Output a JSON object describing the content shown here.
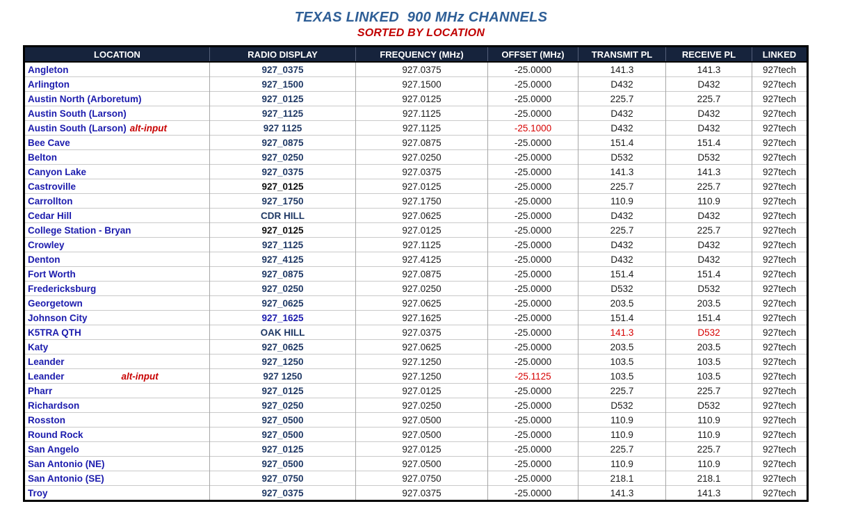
{
  "title": "TEXAS LINKED  900 MHz CHANNELS",
  "subtitle": "SORTED BY LOCATION",
  "colors": {
    "title_blue": "#2E5E96",
    "subtitle_red": "#C00000",
    "header_background": "#16233C",
    "header_text": "#FFFFFF",
    "location_blue": "#1B1BAD",
    "radio_display_navy": "#1F3864",
    "alert_red": "#D60000"
  },
  "table": {
    "headers": [
      "LOCATION",
      "RADIO DISPLAY",
      "FREQUENCY (MHz)",
      "OFFSET (MHz)",
      "TRANSMIT PL",
      "RECEIVE PL",
      "LINKED"
    ],
    "rows": [
      {
        "location": "Angleton",
        "alt": "",
        "alt_gap": false,
        "display": "927_0375",
        "display_color": "navy",
        "frequency": "927.0375",
        "offset": "-25.0000",
        "offset_red": false,
        "transmit_pl": "141.3",
        "receive_pl": "141.3",
        "pl_red": false,
        "linked": "927tech"
      },
      {
        "location": "Arlington",
        "alt": "",
        "alt_gap": false,
        "display": "927_1500",
        "display_color": "navy",
        "frequency": "927.1500",
        "offset": "-25.0000",
        "offset_red": false,
        "transmit_pl": "D432",
        "receive_pl": "D432",
        "pl_red": false,
        "linked": "927tech"
      },
      {
        "location": "Austin North (Arboretum)",
        "alt": "",
        "alt_gap": false,
        "display": "927_0125",
        "display_color": "navy",
        "frequency": "927.0125",
        "offset": "-25.0000",
        "offset_red": false,
        "transmit_pl": "225.7",
        "receive_pl": "225.7",
        "pl_red": false,
        "linked": "927tech"
      },
      {
        "location": "Austin South (Larson)",
        "alt": "",
        "alt_gap": false,
        "display": "927_1125",
        "display_color": "navy",
        "frequency": "927.1125",
        "offset": "-25.0000",
        "offset_red": false,
        "transmit_pl": "D432",
        "receive_pl": "D432",
        "pl_red": false,
        "linked": "927tech"
      },
      {
        "location": "Austin South (Larson)",
        "alt": "alt-input",
        "alt_gap": false,
        "display": "927 1125",
        "display_color": "navy",
        "frequency": "927.1125",
        "offset": "-25.1000",
        "offset_red": true,
        "transmit_pl": "D432",
        "receive_pl": "D432",
        "pl_red": false,
        "linked": "927tech"
      },
      {
        "location": "Bee Cave",
        "alt": "",
        "alt_gap": false,
        "display": "927_0875",
        "display_color": "navy",
        "frequency": "927.0875",
        "offset": "-25.0000",
        "offset_red": false,
        "transmit_pl": "151.4",
        "receive_pl": "151.4",
        "pl_red": false,
        "linked": "927tech"
      },
      {
        "location": "Belton",
        "alt": "",
        "alt_gap": false,
        "display": "927_0250",
        "display_color": "navy",
        "frequency": "927.0250",
        "offset": "-25.0000",
        "offset_red": false,
        "transmit_pl": "D532",
        "receive_pl": "D532",
        "pl_red": false,
        "linked": "927tech"
      },
      {
        "location": "Canyon Lake",
        "alt": "",
        "alt_gap": false,
        "display": "927_0375",
        "display_color": "navy",
        "frequency": "927.0375",
        "offset": "-25.0000",
        "offset_red": false,
        "transmit_pl": "141.3",
        "receive_pl": "141.3",
        "pl_red": false,
        "linked": "927tech"
      },
      {
        "location": "Castroville",
        "alt": "",
        "alt_gap": false,
        "display": "927_0125",
        "display_color": "black",
        "frequency": "927.0125",
        "offset": "-25.0000",
        "offset_red": false,
        "transmit_pl": "225.7",
        "receive_pl": "225.7",
        "pl_red": false,
        "linked": "927tech"
      },
      {
        "location": "Carrollton",
        "alt": "",
        "alt_gap": false,
        "display": "927_1750",
        "display_color": "navy",
        "frequency": "927.1750",
        "offset": "-25.0000",
        "offset_red": false,
        "transmit_pl": "110.9",
        "receive_pl": "110.9",
        "pl_red": false,
        "linked": "927tech"
      },
      {
        "location": "Cedar Hill",
        "alt": "",
        "alt_gap": false,
        "display": "CDR HILL",
        "display_color": "navy",
        "frequency": "927.0625",
        "offset": "-25.0000",
        "offset_red": false,
        "transmit_pl": "D432",
        "receive_pl": "D432",
        "pl_red": false,
        "linked": "927tech"
      },
      {
        "location": "College Station - Bryan",
        "alt": "",
        "alt_gap": false,
        "display": "927_0125",
        "display_color": "black",
        "frequency": "927.0125",
        "offset": "-25.0000",
        "offset_red": false,
        "transmit_pl": "225.7",
        "receive_pl": "225.7",
        "pl_red": false,
        "linked": "927tech"
      },
      {
        "location": "Crowley",
        "alt": "",
        "alt_gap": false,
        "display": "927_1125",
        "display_color": "navy",
        "frequency": "927.1125",
        "offset": "-25.0000",
        "offset_red": false,
        "transmit_pl": "D432",
        "receive_pl": "D432",
        "pl_red": false,
        "linked": "927tech"
      },
      {
        "location": "Denton",
        "alt": "",
        "alt_gap": false,
        "display": "927_4125",
        "display_color": "navy",
        "frequency": "927.4125",
        "offset": "-25.0000",
        "offset_red": false,
        "transmit_pl": "D432",
        "receive_pl": "D432",
        "pl_red": false,
        "linked": "927tech"
      },
      {
        "location": "Fort Worth",
        "alt": "",
        "alt_gap": false,
        "display": "927_0875",
        "display_color": "navy",
        "frequency": "927.0875",
        "offset": "-25.0000",
        "offset_red": false,
        "transmit_pl": "151.4",
        "receive_pl": "151.4",
        "pl_red": false,
        "linked": "927tech"
      },
      {
        "location": "Fredericksburg",
        "alt": "",
        "alt_gap": false,
        "display": "927_0250",
        "display_color": "navy",
        "frequency": "927.0250",
        "offset": "-25.0000",
        "offset_red": false,
        "transmit_pl": "D532",
        "receive_pl": "D532",
        "pl_red": false,
        "linked": "927tech"
      },
      {
        "location": "Georgetown",
        "alt": "",
        "alt_gap": false,
        "display": "927_0625",
        "display_color": "navy",
        "frequency": "927.0625",
        "offset": "-25.0000",
        "offset_red": false,
        "transmit_pl": "203.5",
        "receive_pl": "203.5",
        "pl_red": false,
        "linked": "927tech"
      },
      {
        "location": "Johnson City",
        "alt": "",
        "alt_gap": false,
        "display": "927_1625",
        "display_color": "blue",
        "frequency": "927.1625",
        "offset": "-25.0000",
        "offset_red": false,
        "transmit_pl": "151.4",
        "receive_pl": "151.4",
        "pl_red": false,
        "linked": "927tech"
      },
      {
        "location": "K5TRA QTH",
        "alt": "",
        "alt_gap": false,
        "display": "OAK HILL",
        "display_color": "navy",
        "frequency": "927.0375",
        "offset": "-25.0000",
        "offset_red": false,
        "transmit_pl": "141.3",
        "receive_pl": "D532",
        "pl_red": true,
        "linked": "927tech"
      },
      {
        "location": "Katy",
        "alt": "",
        "alt_gap": false,
        "display": "927_0625",
        "display_color": "navy",
        "frequency": "927.0625",
        "offset": "-25.0000",
        "offset_red": false,
        "transmit_pl": "203.5",
        "receive_pl": "203.5",
        "pl_red": false,
        "linked": "927tech"
      },
      {
        "location": "Leander",
        "alt": "",
        "alt_gap": false,
        "display": "927_1250",
        "display_color": "navy",
        "frequency": "927.1250",
        "offset": "-25.0000",
        "offset_red": false,
        "transmit_pl": "103.5",
        "receive_pl": "103.5",
        "pl_red": false,
        "linked": "927tech"
      },
      {
        "location": "Leander",
        "alt": "alt-input",
        "alt_gap": true,
        "display": "927 1250",
        "display_color": "navy",
        "frequency": "927.1250",
        "offset": "-25.1125",
        "offset_red": true,
        "transmit_pl": "103.5",
        "receive_pl": "103.5",
        "pl_red": false,
        "linked": "927tech"
      },
      {
        "location": "Pharr",
        "alt": "",
        "alt_gap": false,
        "display": "927_0125",
        "display_color": "navy",
        "frequency": "927.0125",
        "offset": "-25.0000",
        "offset_red": false,
        "transmit_pl": "225.7",
        "receive_pl": "225.7",
        "pl_red": false,
        "linked": "927tech"
      },
      {
        "location": "Richardson",
        "alt": "",
        "alt_gap": false,
        "display": "927_0250",
        "display_color": "navy",
        "frequency": "927.0250",
        "offset": "-25.0000",
        "offset_red": false,
        "transmit_pl": "D532",
        "receive_pl": "D532",
        "pl_red": false,
        "linked": "927tech"
      },
      {
        "location": "Rosston",
        "alt": "",
        "alt_gap": false,
        "display": "927_0500",
        "display_color": "navy",
        "frequency": "927.0500",
        "offset": "-25.0000",
        "offset_red": false,
        "transmit_pl": "110.9",
        "receive_pl": "110.9",
        "pl_red": false,
        "linked": "927tech"
      },
      {
        "location": "Round Rock",
        "alt": "",
        "alt_gap": false,
        "display": "927_0500",
        "display_color": "navy",
        "frequency": "927.0500",
        "offset": "-25.0000",
        "offset_red": false,
        "transmit_pl": "110.9",
        "receive_pl": "110.9",
        "pl_red": false,
        "linked": "927tech"
      },
      {
        "location": "San Angelo",
        "alt": "",
        "alt_gap": false,
        "display": "927_0125",
        "display_color": "navy",
        "frequency": "927.0125",
        "offset": "-25.0000",
        "offset_red": false,
        "transmit_pl": "225.7",
        "receive_pl": "225.7",
        "pl_red": false,
        "linked": "927tech"
      },
      {
        "location": "San Antonio (NE)",
        "alt": "",
        "alt_gap": false,
        "display": "927_0500",
        "display_color": "navy",
        "frequency": "927.0500",
        "offset": "-25.0000",
        "offset_red": false,
        "transmit_pl": "110.9",
        "receive_pl": "110.9",
        "pl_red": false,
        "linked": "927tech"
      },
      {
        "location": "San Antonio (SE)",
        "alt": "",
        "alt_gap": false,
        "display": "927_0750",
        "display_color": "navy",
        "frequency": "927.0750",
        "offset": "-25.0000",
        "offset_red": false,
        "transmit_pl": "218.1",
        "receive_pl": "218.1",
        "pl_red": false,
        "linked": "927tech"
      },
      {
        "location": "Troy",
        "alt": "",
        "alt_gap": false,
        "display": "927_0375",
        "display_color": "navy",
        "frequency": "927.0375",
        "offset": "-25.0000",
        "offset_red": false,
        "transmit_pl": "141.3",
        "receive_pl": "141.3",
        "pl_red": false,
        "linked": "927tech"
      }
    ]
  }
}
